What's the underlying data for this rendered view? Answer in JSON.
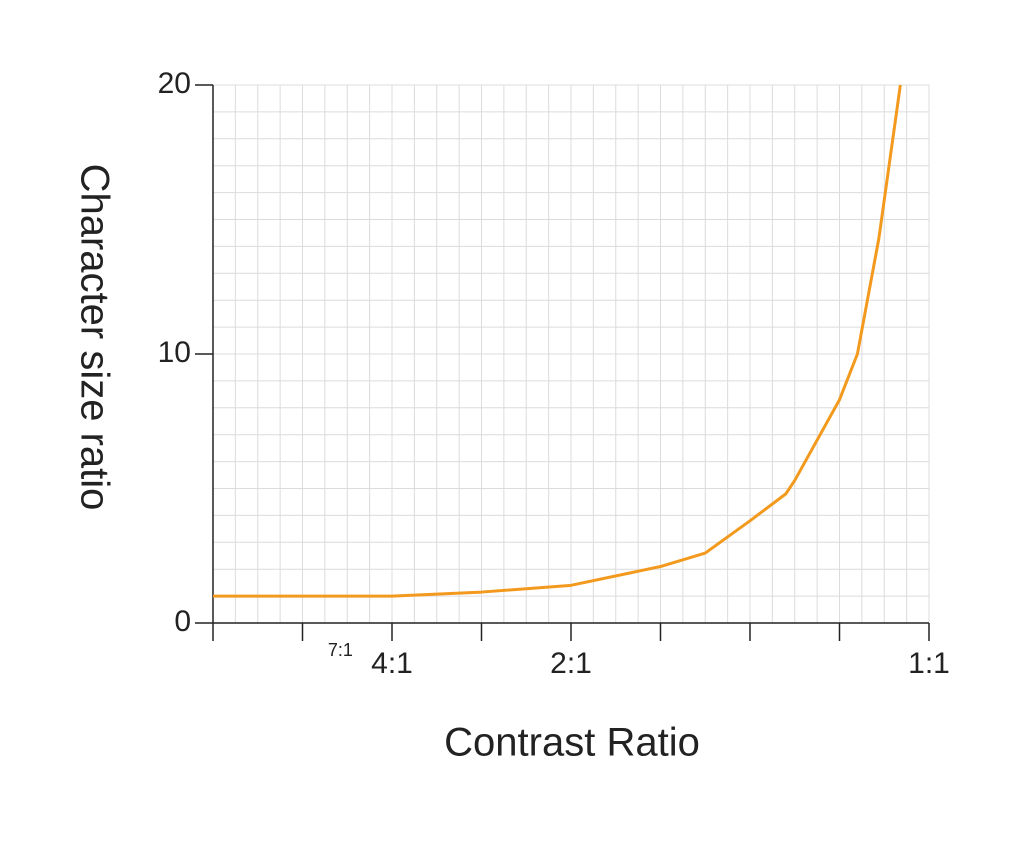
{
  "chart_data": {
    "type": "line",
    "xlabel": "Contrast Ratio",
    "ylabel": "Character size ratio",
    "x": [
      0,
      0.25,
      0.375,
      0.5,
      0.625,
      0.6875,
      0.75,
      0.8,
      0.8125,
      0.875,
      0.9,
      0.93,
      0.96
    ],
    "series": [
      {
        "color": "#f39a1e",
        "values": [
          1.0,
          1.0,
          1.15,
          1.4,
          2.1,
          2.6,
          3.8,
          4.8,
          5.3,
          8.3,
          10,
          14.3,
          20
        ]
      }
    ],
    "xlim": [
      0,
      1
    ],
    "ylim": [
      0,
      20
    ],
    "xticks": [
      {
        "value": 0,
        "label": null
      },
      {
        "value": 0.125,
        "label": null
      },
      {
        "value": 0.25,
        "label": "4:1"
      },
      {
        "value": 0.375,
        "label": null
      },
      {
        "value": 0.5,
        "label": "2:1"
      },
      {
        "value": 0.625,
        "label": null
      },
      {
        "value": 0.75,
        "label": null
      },
      {
        "value": 0.875,
        "label": null
      },
      {
        "value": 1,
        "label": "1:1"
      }
    ],
    "xtick_minor_labels": [
      {
        "value": 0.143,
        "label": "7:1"
      }
    ],
    "yticks": [
      0,
      10,
      20
    ],
    "grid": true,
    "minor_grid_step": {
      "x": 0.03125,
      "y": 1
    }
  }
}
